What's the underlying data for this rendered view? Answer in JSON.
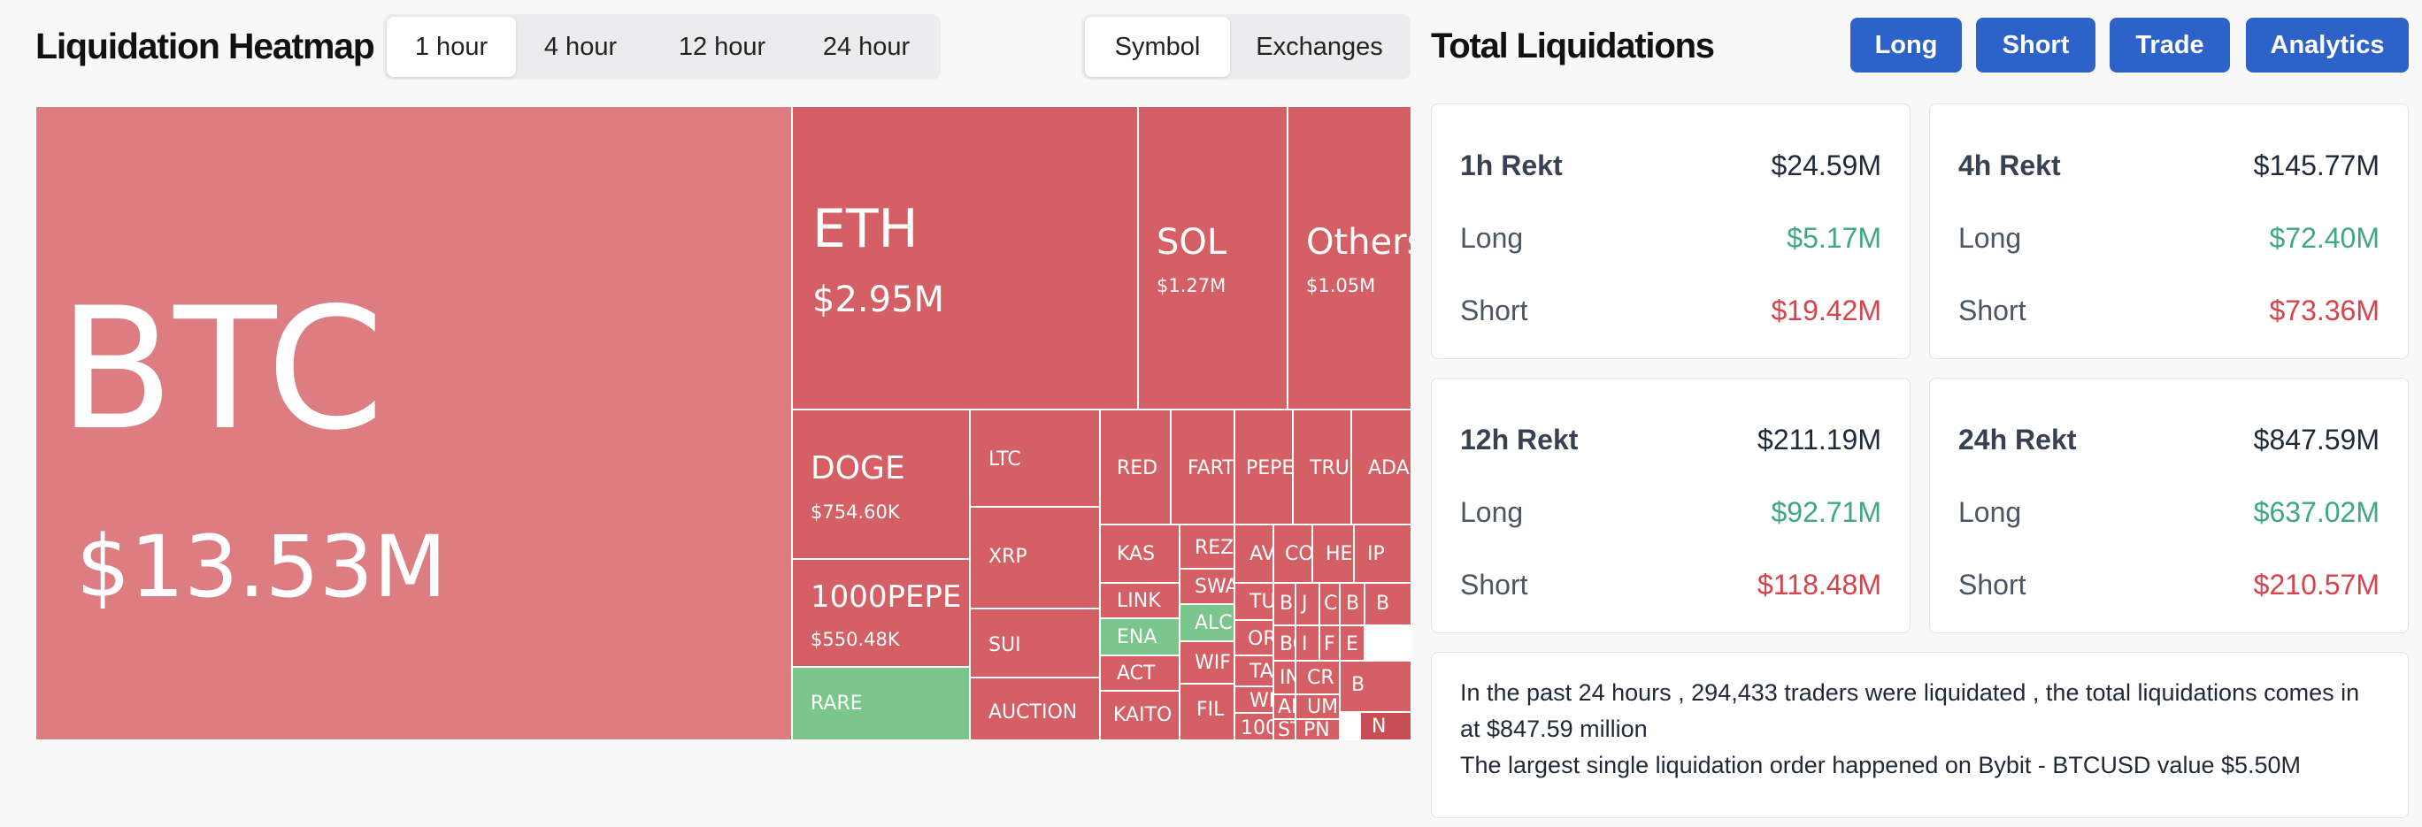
{
  "header": {
    "title": "Liquidation Heatmap",
    "timeframes": [
      "1 hour",
      "4 hour",
      "12 hour",
      "24 hour"
    ],
    "active_timeframe": "1 hour",
    "views": [
      "Symbol",
      "Exchanges"
    ],
    "active_view": "Symbol"
  },
  "right_header": {
    "title": "Total Liquidations",
    "buttons": [
      "Long",
      "Short",
      "Trade",
      "Analytics"
    ]
  },
  "colors": {
    "accent_blue": "#2d63c8",
    "liq_red": "#d45f65",
    "liq_green": "#7bc68b",
    "long_green": "#3ea883",
    "short_red": "#d6434b"
  },
  "heatmap": {
    "tiles": [
      {
        "symbol": "BTC",
        "value": "$13.53M"
      },
      {
        "symbol": "ETH",
        "value": "$2.95M"
      },
      {
        "symbol": "SOL",
        "value": "$1.27M"
      },
      {
        "symbol": "Others",
        "value": "$1.05M"
      },
      {
        "symbol": "DOGE",
        "value": "$754.60K"
      },
      {
        "symbol": "1000PEPE",
        "value": "$550.48K"
      },
      {
        "symbol": "RARE"
      },
      {
        "symbol": "LTC"
      },
      {
        "symbol": "XRP"
      },
      {
        "symbol": "SUI"
      },
      {
        "symbol": "AUCTION"
      },
      {
        "symbol": "RED"
      },
      {
        "symbol": "FART"
      },
      {
        "symbol": "PEPE"
      },
      {
        "symbol": "TRU"
      },
      {
        "symbol": "ADA"
      },
      {
        "symbol": "KAS"
      },
      {
        "symbol": "REZ"
      },
      {
        "symbol": "AV"
      },
      {
        "symbol": "CO"
      },
      {
        "symbol": "HE"
      },
      {
        "symbol": "IP"
      },
      {
        "symbol": "SWA"
      },
      {
        "symbol": "LINK"
      },
      {
        "symbol": "TUR"
      },
      {
        "symbol": "B"
      },
      {
        "symbol": "J"
      },
      {
        "symbol": "C"
      },
      {
        "symbol": "B"
      },
      {
        "symbol": "ENA"
      },
      {
        "symbol": "ALCH"
      },
      {
        "symbol": "ORD"
      },
      {
        "symbol": "B"
      },
      {
        "symbol": "I"
      },
      {
        "symbol": "F"
      },
      {
        "symbol": "E"
      },
      {
        "symbol": "ACT"
      },
      {
        "symbol": "WIF"
      },
      {
        "symbol": "TAO"
      },
      {
        "symbol": "BO"
      },
      {
        "symbol": "IN"
      },
      {
        "symbol": "CR"
      },
      {
        "symbol": "B"
      },
      {
        "symbol": "KAITO"
      },
      {
        "symbol": "FIL"
      },
      {
        "symbol": "WL"
      },
      {
        "symbol": "AR"
      },
      {
        "symbol": "UM"
      },
      {
        "symbol": "100"
      },
      {
        "symbol": "ST"
      },
      {
        "symbol": "PN"
      },
      {
        "symbol": "N"
      }
    ]
  },
  "cards": [
    {
      "title": "1h Rekt",
      "total": "$24.59M",
      "long_label": "Long",
      "long": "$5.17M",
      "short_label": "Short",
      "short": "$19.42M"
    },
    {
      "title": "4h Rekt",
      "total": "$145.77M",
      "long_label": "Long",
      "long": "$72.40M",
      "short_label": "Short",
      "short": "$73.36M"
    },
    {
      "title": "12h Rekt",
      "total": "$211.19M",
      "long_label": "Long",
      "long": "$92.71M",
      "short_label": "Short",
      "short": "$118.48M"
    },
    {
      "title": "24h Rekt",
      "total": "$847.59M",
      "long_label": "Long",
      "long": "$637.02M",
      "short_label": "Short",
      "short": "$210.57M"
    }
  ],
  "summary": {
    "line1": "In the past 24 hours , 294,433 traders were liquidated , the total liquidations comes in",
    "line2": "at $847.59 million",
    "line3": "The largest single liquidation order happened on Bybit - BTCUSD value $5.50M"
  }
}
